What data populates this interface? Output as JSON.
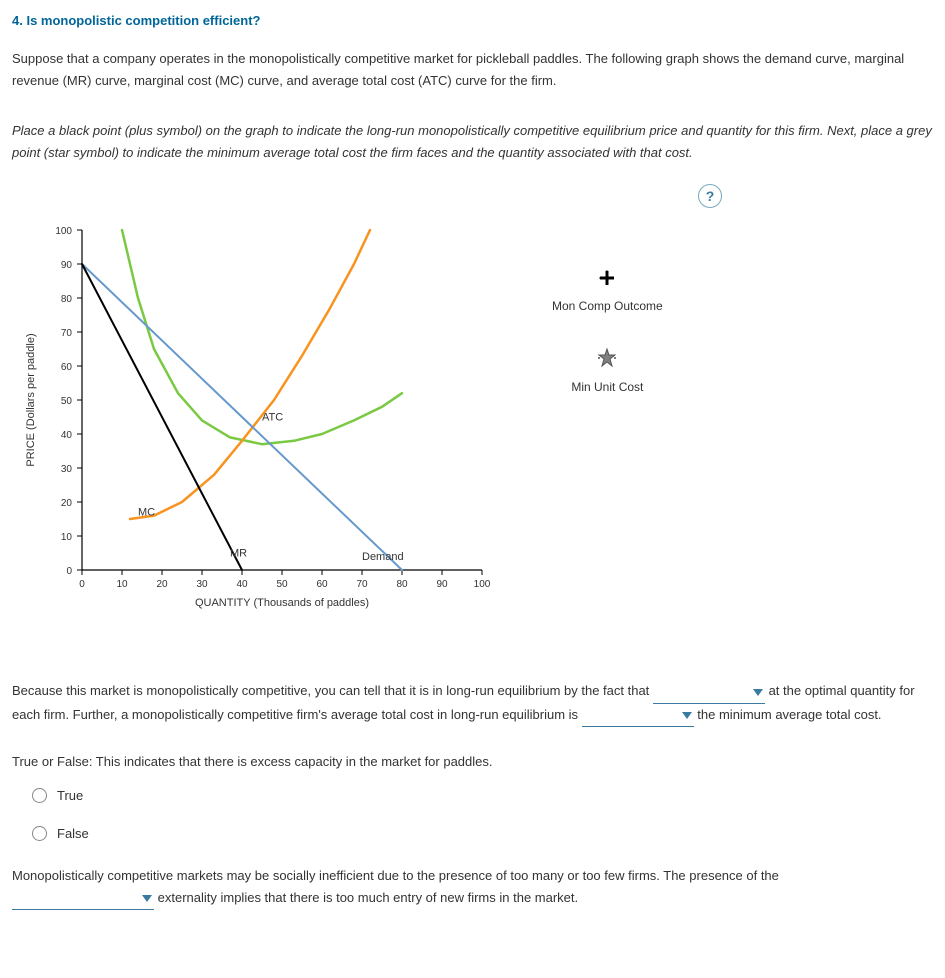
{
  "question_number": "4.",
  "question_title": "Is monopolistic competition efficient?",
  "intro_1": "Suppose that a company operates in the monopolistically competitive market for pickleball paddles. The following graph shows the demand curve, marginal revenue (MR) curve, marginal cost (MC) curve, and average total cost (ATC) curve for the firm.",
  "instructions": "Place a black point (plus symbol) on the graph to indicate the long-run monopolistically competitive equilibrium price and quantity for this firm. Next, place a grey point (star symbol) to indicate the minimum average total cost the firm faces and the quantity associated with that cost.",
  "help_char": "?",
  "chart": {
    "type": "line",
    "xlabel": "QUANTITY (Thousands of paddles)",
    "ylabel": "PRICE (Dollars per paddle)",
    "xlim": [
      0,
      100
    ],
    "ylim": [
      0,
      100
    ],
    "xtick_step": 10,
    "ytick_step": 10,
    "background": "#ffffff",
    "axis_color": "#000000",
    "tick_fontsize": 10,
    "label_fontsize": 11,
    "curves": {
      "demand": {
        "label": "Demand",
        "color": "#6699cc",
        "width": 2,
        "points": [
          [
            0,
            90
          ],
          [
            80,
            0
          ]
        ]
      },
      "mr": {
        "label": "MR",
        "color": "#000000",
        "width": 2,
        "points": [
          [
            0,
            90
          ],
          [
            40,
            0
          ]
        ]
      },
      "mc": {
        "label": "MC",
        "color": "#f7931e",
        "width": 2.5,
        "points": [
          [
            12,
            15
          ],
          [
            18,
            16
          ],
          [
            25,
            20
          ],
          [
            33,
            28
          ],
          [
            40,
            38
          ],
          [
            48,
            50
          ],
          [
            55,
            63
          ],
          [
            62,
            77
          ],
          [
            68,
            90
          ],
          [
            72,
            100
          ]
        ]
      },
      "atc": {
        "label": "ATC",
        "color": "#7ac943",
        "width": 2.5,
        "points": [
          [
            10,
            100
          ],
          [
            14,
            80
          ],
          [
            18,
            65
          ],
          [
            24,
            52
          ],
          [
            30,
            44
          ],
          [
            37,
            39
          ],
          [
            45,
            37
          ],
          [
            53,
            38
          ],
          [
            60,
            40
          ],
          [
            68,
            44
          ],
          [
            75,
            48
          ],
          [
            80,
            52
          ]
        ]
      }
    },
    "curve_label_pos": {
      "demand": {
        "x": 70,
        "y": 3
      },
      "mr": {
        "x": 37,
        "y": 4
      },
      "mc": {
        "x": 14,
        "y": 16
      },
      "atc": {
        "x": 45,
        "y": 44
      }
    }
  },
  "legend": {
    "item1": {
      "label": "Mon Comp Outcome",
      "symbol": "plus",
      "color": "#000000"
    },
    "item2": {
      "label": "Min Unit Cost",
      "symbol": "star",
      "color": "#808080"
    }
  },
  "fill_para_1a": "Because this market is monopolistically competitive, you can tell that it is in long-run equilibrium by the fact that",
  "fill_para_1b": "at the optimal quantity for each firm. Further, a monopolistically competitive firm's average total cost in long-run equilibrium is",
  "fill_para_1c": "the minimum average total cost.",
  "tf_prompt": "True or False: This indicates that there is excess capacity in the market for paddles.",
  "options": {
    "true": "True",
    "false": "False"
  },
  "last_para_a": "Monopolistically competitive markets may be socially inefficient due to the presence of too many or too few firms. The presence of the",
  "last_para_b": "externality implies that there is too much entry of new firms in the market."
}
